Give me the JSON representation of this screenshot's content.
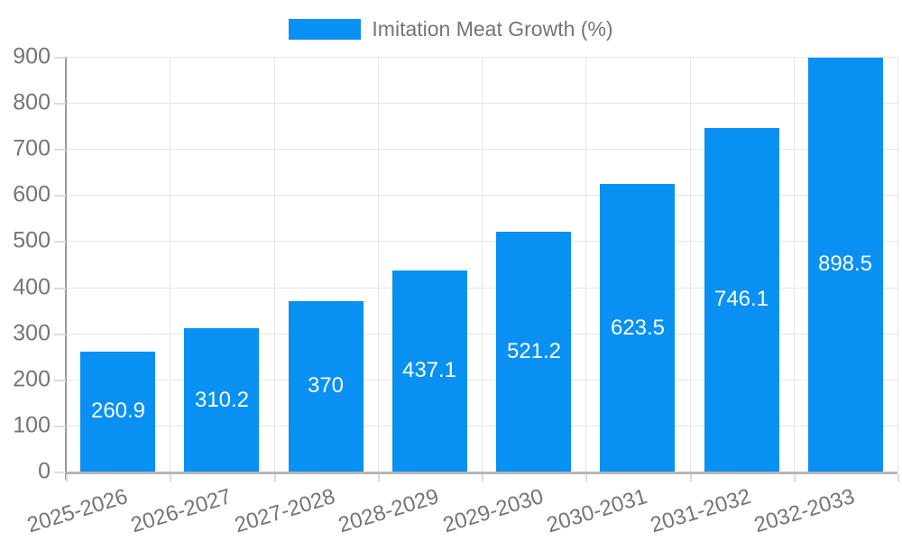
{
  "chart_data": {
    "type": "bar",
    "title": "",
    "legend_position": "top-center",
    "categories": [
      "2025-2026",
      "2026-2027",
      "2027-2028",
      "2028-2029",
      "2029-2030",
      "2030-2031",
      "2031-2032",
      "2032-2033"
    ],
    "series": [
      {
        "name": "Imitation Meat Growth (%)",
        "values": [
          260.9,
          310.2,
          370,
          437.1,
          521.2,
          623.5,
          746.1,
          898.5
        ]
      }
    ],
    "value_labels": [
      "260.9",
      "310.2",
      "370",
      "437.1",
      "521.2",
      "623.5",
      "746.1",
      "898.5"
    ],
    "xlabel": "",
    "ylabel": "",
    "ylim": [
      0,
      900
    ],
    "yticks": [
      0,
      100,
      200,
      300,
      400,
      500,
      600,
      700,
      800,
      900
    ],
    "grid": true,
    "x_tick_label_rotation_deg": -17
  },
  "colors": {
    "bar": "#0890f3",
    "axis_text": "#757575",
    "grid_line": "#e6e6e6",
    "y_axis_line": "#999999",
    "x_axis_line": "#b5b5b5",
    "tick": "#dcdcdc",
    "value_label_text": "#ffffff",
    "background": "#ffffff"
  }
}
